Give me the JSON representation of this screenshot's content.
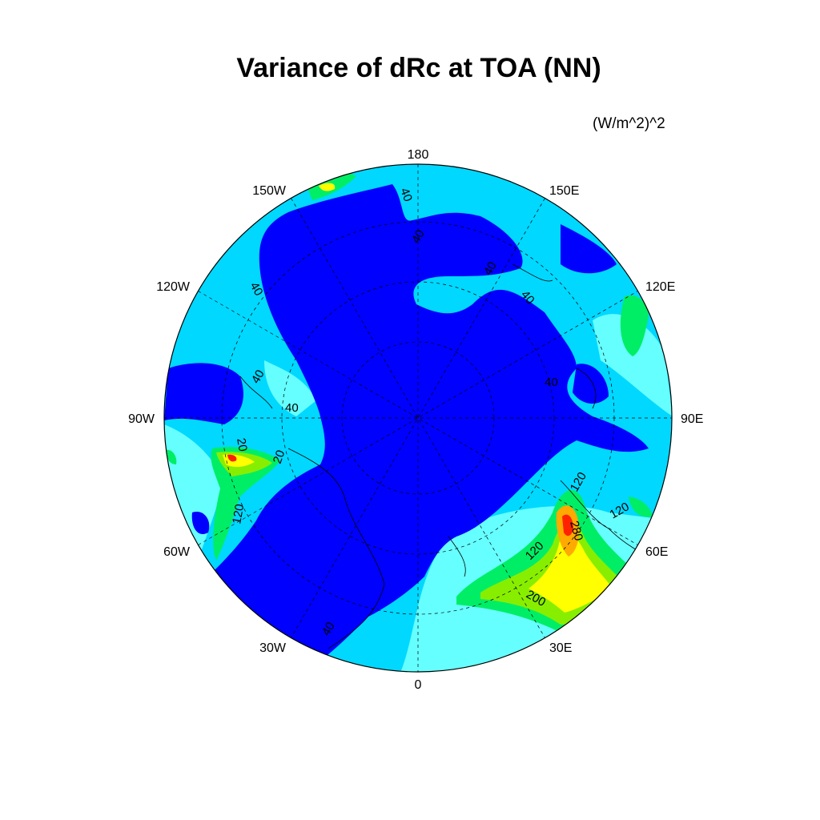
{
  "title": "Variance of dRc at TOA (NN)",
  "units": "(W/m^2)^2",
  "map": {
    "projection": "north-polar-stereographic",
    "longitude_labels": [
      "180",
      "150E",
      "120E",
      "90E",
      "60E",
      "30E",
      "0",
      "30W",
      "60W",
      "90W",
      "120W",
      "150W"
    ],
    "contour_labels": [
      "40",
      "40",
      "40",
      "40",
      "40",
      "40",
      "40",
      "40",
      "20",
      "20",
      "120",
      "120",
      "120",
      "120",
      "280",
      "200",
      "40"
    ],
    "colors": {
      "level_0_40": "#0000ff",
      "level_40_80": "#00d8ff",
      "level_80_120": "#66ffff",
      "level_120_160": "#00ee66",
      "level_160_200": "#88ee00",
      "level_200_240": "#ffff00",
      "level_240_280": "#ffaa00",
      "level_280_plus": "#ff2200"
    }
  }
}
